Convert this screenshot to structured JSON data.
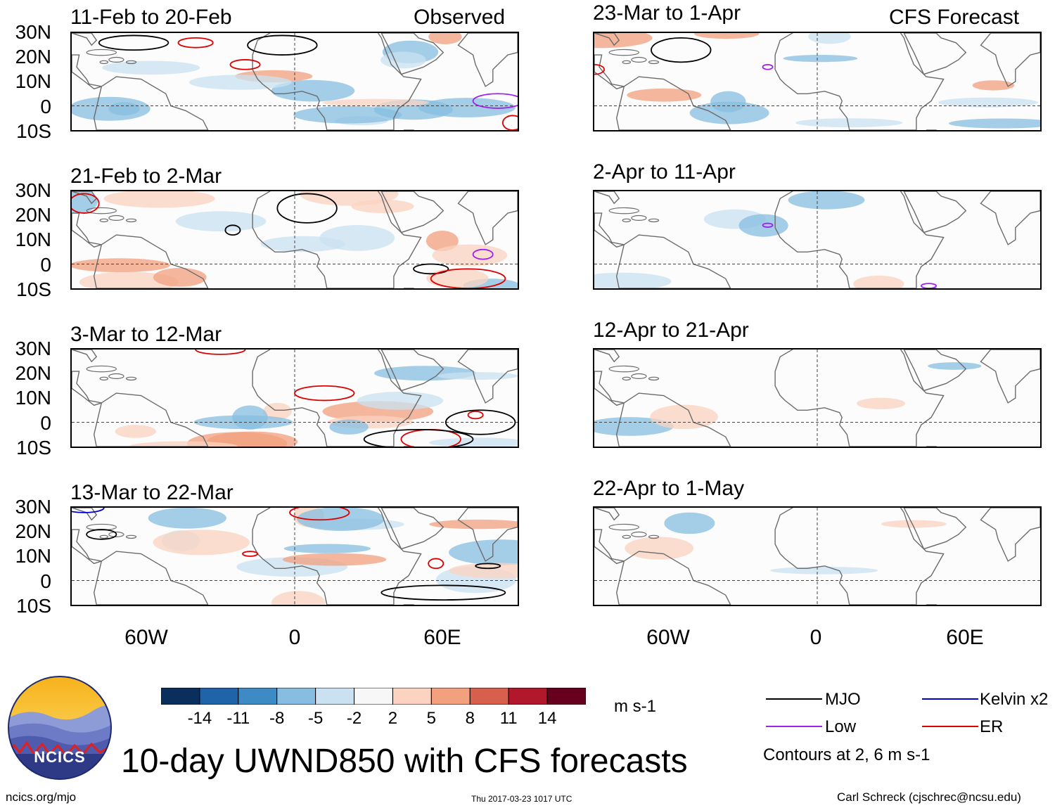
{
  "header": {
    "observed": "Observed",
    "forecast": "CFS Forecast"
  },
  "panels_observed": [
    {
      "title": "11-Feb to 20-Feb"
    },
    {
      "title": "21-Feb to 2-Mar"
    },
    {
      "title": "3-Mar to 12-Mar"
    },
    {
      "title": "13-Mar to 22-Mar"
    }
  ],
  "panels_forecast": [
    {
      "title": "23-Mar to 1-Apr"
    },
    {
      "title": "2-Apr to 11-Apr"
    },
    {
      "title": "12-Apr to 21-Apr"
    },
    {
      "title": "22-Apr to 1-May"
    }
  ],
  "lat_labels": [
    "30N",
    "20N",
    "10N",
    "0",
    "10S"
  ],
  "lon_labels": [
    "60W",
    "0",
    "60E"
  ],
  "colorbar": {
    "ticks": [
      "-14",
      "-11",
      "-8",
      "-5",
      "-2",
      "2",
      "5",
      "8",
      "11",
      "14"
    ],
    "colors": [
      "#0a2f5c",
      "#1f63a8",
      "#3e8ac4",
      "#87bde0",
      "#c9e1f1",
      "#f7f7f7",
      "#fbd3c0",
      "#f2a07e",
      "#d6604d",
      "#b2182b",
      "#67001f"
    ],
    "units": "m s-1"
  },
  "legend": {
    "mjo": "MJO",
    "low": "Low",
    "kelvin": "Kelvin x2",
    "er": "ER",
    "contours_note": "Contours at 2, 6 m s-1",
    "colors": {
      "mjo": "#000000",
      "low": "#a020f0",
      "kelvin": "#0000cc",
      "er": "#dd0000"
    }
  },
  "title": "10-day UWND850 with CFS forecasts",
  "logo": {
    "text": "NCICS"
  },
  "footer": {
    "url": "ncics.org/mjo",
    "timestamp": "Thu 2017-03-23 1017 UTC",
    "credit": "Carl Schreck (cjschrec@ncsu.edu)"
  }
}
